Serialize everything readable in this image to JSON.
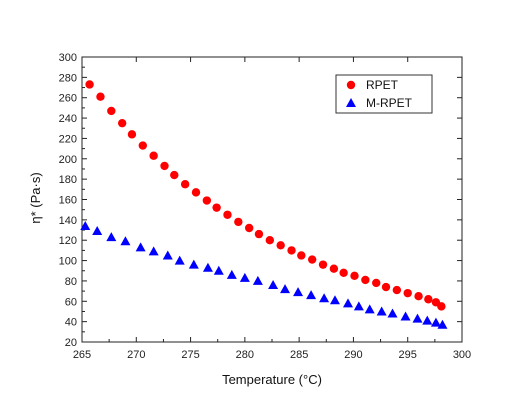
{
  "chart_data": {
    "type": "scatter",
    "title": "",
    "xlabel": "Temperature (°C)",
    "ylabel": "η* (Pa·s)",
    "xlim": [
      265,
      300
    ],
    "ylim": [
      20,
      300
    ],
    "xticks": [
      265,
      270,
      275,
      280,
      285,
      290,
      295,
      300
    ],
    "yticks": [
      20,
      40,
      60,
      80,
      100,
      120,
      140,
      160,
      180,
      200,
      220,
      240,
      260,
      280,
      300
    ],
    "grid": false,
    "legend_position": "top-right",
    "series": [
      {
        "name": "RPET",
        "marker": "circle",
        "color": "#ff0000",
        "x": [
          265.7,
          266.7,
          267.7,
          268.7,
          269.6,
          270.6,
          271.6,
          272.6,
          273.5,
          274.5,
          275.5,
          276.5,
          277.4,
          278.4,
          279.4,
          280.4,
          281.3,
          282.3,
          283.3,
          284.3,
          285.2,
          286.2,
          287.2,
          288.2,
          289.1,
          290.1,
          291.1,
          292.1,
          293.0,
          294.0,
          295.0,
          296.0,
          296.9,
          297.6,
          298.1
        ],
        "y": [
          273,
          261,
          247,
          235,
          224,
          213,
          203,
          193,
          184,
          175,
          167,
          159,
          152,
          145,
          138,
          132,
          126,
          120,
          115,
          110,
          105,
          101,
          96,
          92,
          88,
          85,
          81,
          78,
          74,
          71,
          68,
          65,
          62,
          59,
          55
        ]
      },
      {
        "name": "M-RPET",
        "marker": "triangle",
        "color": "#0000ff",
        "x": [
          265.3,
          266.4,
          267.7,
          269.0,
          270.4,
          271.6,
          272.9,
          274.0,
          275.3,
          276.6,
          277.6,
          278.8,
          280.0,
          281.2,
          282.6,
          283.7,
          284.9,
          286.1,
          287.3,
          288.3,
          289.5,
          290.5,
          291.5,
          292.6,
          293.6,
          294.8,
          295.9,
          296.8,
          297.6,
          298.2
        ],
        "y": [
          134,
          129,
          123,
          119,
          113,
          109,
          105,
          100,
          96,
          93,
          90,
          86,
          83,
          80,
          76,
          72,
          69,
          66,
          63,
          61,
          58,
          55,
          52,
          50,
          48,
          45,
          43,
          41,
          39,
          37
        ]
      }
    ]
  }
}
